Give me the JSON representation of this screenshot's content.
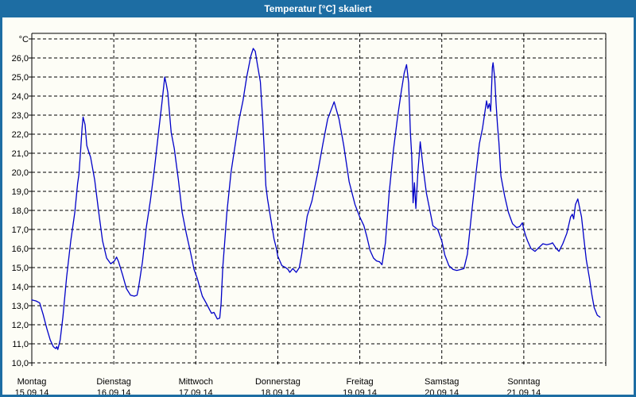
{
  "window": {
    "title": "Temperatur [°C] skaliert"
  },
  "colors": {
    "titlebar": "#1d6da3",
    "window_border": "#1d6da3",
    "line": "#0000c8",
    "grid": "#000000",
    "background": "#fdfdf6"
  },
  "chart_data": {
    "type": "line",
    "title": "Temperatur [°C] skaliert",
    "y_unit_label": "°C",
    "grid": {
      "style": "dashed",
      "horizontal": true,
      "vertical": true
    },
    "legend": "none",
    "y_axis": {
      "min": 10.0,
      "max": 27.3,
      "grid_step": 1.0,
      "tick_labels": [
        "10,0",
        "11,0",
        "12,0",
        "13,0",
        "14,0",
        "15,0",
        "16,0",
        "17,0",
        "18,0",
        "19,0",
        "20,0",
        "21,0",
        "22,0",
        "23,0",
        "24,0",
        "25,0",
        "26,0"
      ]
    },
    "x_axis": {
      "unit": "hours_from_monday_00",
      "hours_total": 168,
      "days": [
        {
          "name": "Montag",
          "date": "15.09.14"
        },
        {
          "name": "Dienstag",
          "date": "16.09.14"
        },
        {
          "name": "Mittwoch",
          "date": "17.09.14"
        },
        {
          "name": "Donnerstag",
          "date": "18.09.14"
        },
        {
          "name": "Freitag",
          "date": "19.09.14"
        },
        {
          "name": "Samstag",
          "date": "20.09.14"
        },
        {
          "name": "Sonntag",
          "date": "21.09.14"
        }
      ]
    },
    "series": [
      {
        "name": "Temperatur",
        "color": "#0000c8",
        "points": [
          [
            0,
            13.3
          ],
          [
            1.2,
            13.25
          ],
          [
            2.3,
            13.15
          ],
          [
            3.3,
            12.55
          ],
          [
            4.4,
            11.8
          ],
          [
            5.4,
            11.2
          ],
          [
            6.3,
            10.85
          ],
          [
            7,
            10.75
          ],
          [
            7.3,
            10.85
          ],
          [
            7.6,
            10.7
          ],
          [
            8.3,
            11.2
          ],
          [
            9.1,
            12.4
          ],
          [
            10.2,
            14.5
          ],
          [
            11.4,
            16.4
          ],
          [
            12.6,
            17.9
          ],
          [
            13.4,
            19.4
          ],
          [
            13.8,
            19.9
          ],
          [
            14.3,
            21.2
          ],
          [
            14.7,
            22.3
          ],
          [
            15,
            22.9
          ],
          [
            15.6,
            22.5
          ],
          [
            16.1,
            21.4
          ],
          [
            16.8,
            21
          ],
          [
            17.2,
            20.8
          ],
          [
            18.4,
            19.6
          ],
          [
            19.6,
            17.9
          ],
          [
            20.7,
            16.4
          ],
          [
            21.9,
            15.5
          ],
          [
            23.1,
            15.2
          ],
          [
            24.2,
            15.35
          ],
          [
            24.8,
            15.55
          ],
          [
            25.4,
            15.3
          ],
          [
            26.6,
            14.6
          ],
          [
            27.7,
            13.9
          ],
          [
            28.9,
            13.55
          ],
          [
            30,
            13.5
          ],
          [
            30.8,
            13.55
          ],
          [
            31.2,
            13.9
          ],
          [
            32.4,
            15.3
          ],
          [
            33.5,
            17.1
          ],
          [
            34.7,
            18.5
          ],
          [
            35.9,
            20.2
          ],
          [
            37,
            21.95
          ],
          [
            38,
            23.5
          ],
          [
            38.9,
            25
          ],
          [
            39.4,
            24.6
          ],
          [
            39.8,
            24.2
          ],
          [
            40.8,
            22.1
          ],
          [
            41.7,
            21.25
          ],
          [
            42.9,
            19.6
          ],
          [
            44,
            17.9
          ],
          [
            45.2,
            16.8
          ],
          [
            46.4,
            15.85
          ],
          [
            47.5,
            14.9
          ],
          [
            48.4,
            14.45
          ],
          [
            49.9,
            13.5
          ],
          [
            51,
            13.15
          ],
          [
            52,
            12.8
          ],
          [
            52.6,
            12.6
          ],
          [
            53.3,
            12.65
          ],
          [
            54.3,
            12.3
          ],
          [
            55,
            12.35
          ],
          [
            55.4,
            13.1
          ],
          [
            55.9,
            15
          ],
          [
            56.4,
            16.2
          ],
          [
            57.1,
            17.9
          ],
          [
            58.3,
            20
          ],
          [
            59.4,
            21.3
          ],
          [
            60.6,
            22.7
          ],
          [
            61.8,
            23.75
          ],
          [
            62.9,
            25
          ],
          [
            64.1,
            26.1
          ],
          [
            64.8,
            26.5
          ],
          [
            65.4,
            26.35
          ],
          [
            66,
            25.7
          ],
          [
            66.9,
            24.75
          ],
          [
            67.6,
            22.7
          ],
          [
            68.1,
            20.9
          ],
          [
            68.5,
            19.3
          ],
          [
            69,
            18.6
          ],
          [
            69.9,
            17.6
          ],
          [
            70.9,
            16.5
          ],
          [
            71.6,
            16
          ],
          [
            72,
            15.6
          ],
          [
            73.2,
            15.1
          ],
          [
            74.3,
            15
          ],
          [
            75,
            14.9
          ],
          [
            75.5,
            14.75
          ],
          [
            76.4,
            14.95
          ],
          [
            77.4,
            14.75
          ],
          [
            78.3,
            15
          ],
          [
            79,
            15.7
          ],
          [
            80.6,
            17.7
          ],
          [
            82,
            18.5
          ],
          [
            83.6,
            19.9
          ],
          [
            85.2,
            21.5
          ],
          [
            86.6,
            22.8
          ],
          [
            88.5,
            23.7
          ],
          [
            89.9,
            22.8
          ],
          [
            91.3,
            21.4
          ],
          [
            92.9,
            19.5
          ],
          [
            94.6,
            18.3
          ],
          [
            96,
            17.65
          ],
          [
            97.2,
            17.2
          ],
          [
            98.1,
            16.6
          ],
          [
            99,
            15.9
          ],
          [
            100,
            15.5
          ],
          [
            100.9,
            15.35
          ],
          [
            101.8,
            15.3
          ],
          [
            102.5,
            15.15
          ],
          [
            103.5,
            16.3
          ],
          [
            104.6,
            18.9
          ],
          [
            105.8,
            21.1
          ],
          [
            107,
            22.8
          ],
          [
            108.1,
            24.2
          ],
          [
            109,
            25.2
          ],
          [
            109.7,
            25.65
          ],
          [
            110.3,
            24.7
          ],
          [
            110.8,
            22.1
          ],
          [
            111.2,
            20.85
          ],
          [
            111.6,
            18.4
          ],
          [
            112,
            19.45
          ],
          [
            112.4,
            18.1
          ],
          [
            113,
            20
          ],
          [
            113.7,
            21.6
          ],
          [
            114.6,
            20.15
          ],
          [
            115.5,
            18.9
          ],
          [
            116.3,
            18.2
          ],
          [
            117.4,
            17.2
          ],
          [
            118.8,
            17
          ],
          [
            120,
            16.4
          ],
          [
            120.9,
            15.65
          ],
          [
            122.1,
            15.1
          ],
          [
            123.3,
            14.9
          ],
          [
            124.4,
            14.85
          ],
          [
            125.6,
            14.9
          ],
          [
            126.5,
            14.95
          ],
          [
            127.5,
            15.7
          ],
          [
            128.6,
            17.65
          ],
          [
            129.8,
            19.6
          ],
          [
            131,
            21.5
          ],
          [
            131.9,
            22.3
          ],
          [
            133.1,
            23.75
          ],
          [
            133.5,
            23.35
          ],
          [
            133.9,
            23.6
          ],
          [
            134.3,
            23.2
          ],
          [
            134.8,
            25.5
          ],
          [
            135,
            25.75
          ],
          [
            135.5,
            24.95
          ],
          [
            135.9,
            23.6
          ],
          [
            136.3,
            22.45
          ],
          [
            136.7,
            21.6
          ],
          [
            137.3,
            19.8
          ],
          [
            138.4,
            18.75
          ],
          [
            139.5,
            17.9
          ],
          [
            140.7,
            17.3
          ],
          [
            141.9,
            17.1
          ],
          [
            142.8,
            17.15
          ],
          [
            143.6,
            17.35
          ],
          [
            144,
            17
          ],
          [
            144.5,
            16.7
          ],
          [
            145.1,
            16.4
          ],
          [
            146.1,
            16
          ],
          [
            147.3,
            15.85
          ],
          [
            148.4,
            16.05
          ],
          [
            149.6,
            16.25
          ],
          [
            150.7,
            16.2
          ],
          [
            151.9,
            16.25
          ],
          [
            152.4,
            16.3
          ],
          [
            153.5,
            16
          ],
          [
            154.3,
            15.85
          ],
          [
            155.4,
            16.25
          ],
          [
            156.6,
            16.8
          ],
          [
            157.7,
            17.65
          ],
          [
            158.2,
            17.8
          ],
          [
            158.6,
            17.55
          ],
          [
            159.1,
            18.3
          ],
          [
            159.8,
            18.6
          ],
          [
            160.9,
            17.65
          ],
          [
            161.6,
            16.5
          ],
          [
            162.3,
            15.4
          ],
          [
            163.2,
            14.45
          ],
          [
            163.9,
            13.6
          ],
          [
            164.6,
            12.9
          ],
          [
            165.5,
            12.5
          ],
          [
            166.3,
            12.4
          ]
        ]
      }
    ]
  }
}
